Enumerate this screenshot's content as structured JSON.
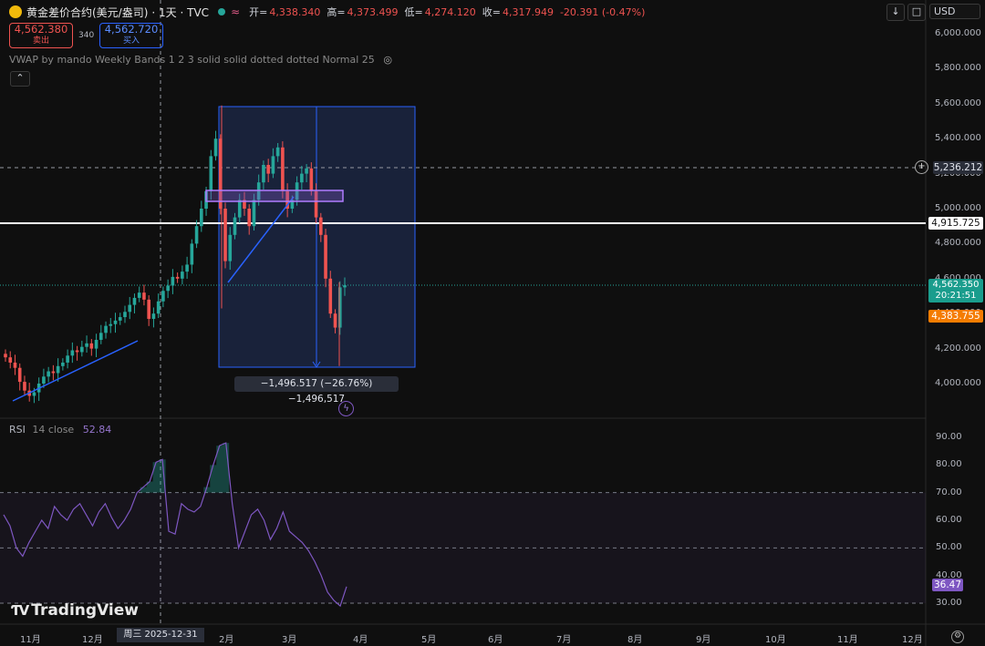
{
  "header": {
    "symbol": "黄金差价合约(美元/盎司)",
    "interval": "· 1天 · TVC",
    "open_label": "开=",
    "open": "4,338.340",
    "high_label": "高=",
    "high": "4,373.499",
    "low_label": "低=",
    "low": "4,274.120",
    "close_label": "收=",
    "close": "4,317.949",
    "change": "-20.391 (-0.47%)"
  },
  "trade": {
    "sell_price": "4,562.380",
    "sell_label": "卖出",
    "spread": "340",
    "buy_price": "4,562.720",
    "buy_label": "买入"
  },
  "toolbar": {
    "currency": "USD"
  },
  "indicator": {
    "vwap_label": "VWAP by mando Weekly Bands 1 2 3 solid solid dotted dotted Normal 25"
  },
  "price_axis": [
    "6,000.000",
    "5,800.000",
    "5,600.000",
    "5,400.000",
    "5,200.000",
    "5,000.000",
    "4,800.000",
    "4,600.000",
    "4,400.000",
    "4,200.000",
    "4,000.000"
  ],
  "price_tags": {
    "crosshair": "5,236.212",
    "hline": "4,915.725",
    "last": "4,562.350",
    "countdown": "20:21:51",
    "vwap": "4,383.755"
  },
  "measure": {
    "text": "−1,496.517 (−26.76%) −1,496,517"
  },
  "rsi": {
    "label": "RSI",
    "params": "14 close",
    "value": "52.84",
    "last_tag": "36.47",
    "axis": [
      "90.00",
      "80.00",
      "70.00",
      "60.00",
      "50.00",
      "40.00",
      "30.00"
    ]
  },
  "time_axis": {
    "labels": [
      "11月",
      "12月",
      "2月",
      "3月",
      "4月",
      "5月",
      "6月",
      "7月",
      "8月",
      "9月",
      "10月",
      "11月",
      "12月"
    ],
    "crosshair_date": "周三 2025-12-31"
  },
  "logo": {
    "text": "TradingView"
  },
  "colors": {
    "up": "#26a69a",
    "down": "#ef5350",
    "bg": "#0f0f0f",
    "rsi": "#7e57c2",
    "range_box": "#1e2a4a"
  },
  "chart_data": {
    "type": "candlestick",
    "y_unit": "USD",
    "ylim": [
      3860,
      6060
    ],
    "series": [
      {
        "name": "price_close_path",
        "values": [
          4150,
          4120,
          4090,
          4010,
          3960,
          3930,
          3950,
          4000,
          4040,
          4070,
          4060,
          4100,
          4120,
          4160,
          4190,
          4180,
          4210,
          4230,
          4200,
          4250,
          4290,
          4330,
          4340,
          4360,
          4380,
          4410,
          4450,
          4490,
          4520,
          4480,
          4370,
          4400,
          4470,
          4530,
          4560,
          4610,
          4600,
          4640,
          4680,
          4800,
          4900,
          5000,
          5100,
          5300,
          5400,
          5000,
          4700,
          4850,
          4950,
          5050,
          5000,
          4900,
          5050,
          5150,
          5250,
          5200,
          5300,
          5350,
          5100,
          5000,
          5050,
          5150,
          5200,
          5230,
          5100,
          4950,
          4850,
          4600,
          4400,
          4320,
          4550,
          4562
        ]
      }
    ],
    "rsi_ylim": [
      27,
      93
    ],
    "rsi_values": [
      62,
      58,
      50,
      47,
      52,
      56,
      60,
      57,
      65,
      62,
      60,
      64,
      66,
      62,
      58,
      63,
      66,
      61,
      57,
      60,
      64,
      70,
      72,
      74,
      81,
      82,
      56,
      55,
      66,
      64,
      63,
      65,
      72,
      80,
      87,
      88,
      66,
      50,
      56,
      62,
      64,
      60,
      53,
      57,
      63,
      56,
      54,
      52,
      49,
      45,
      40,
      34,
      31,
      29,
      36
    ]
  }
}
